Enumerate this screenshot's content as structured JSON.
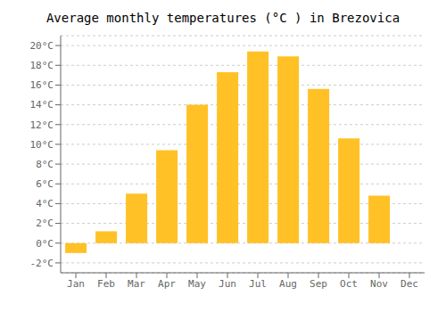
{
  "chart_data": {
    "type": "bar",
    "title": "Average monthly temperatures (°C ) in Brezovica",
    "categories": [
      "Jan",
      "Feb",
      "Mar",
      "Apr",
      "May",
      "Jun",
      "Jul",
      "Aug",
      "Sep",
      "Oct",
      "Nov",
      "Dec"
    ],
    "values": [
      -1.0,
      1.2,
      5.0,
      9.4,
      14.0,
      17.3,
      19.4,
      18.9,
      15.6,
      10.6,
      4.8,
      0.0
    ],
    "color": "#FFC125",
    "ylim": [
      -3,
      21
    ],
    "yticks": [
      {
        "value": -2,
        "label": "-2°C"
      },
      {
        "value": 0,
        "label": "0°C"
      },
      {
        "value": 2,
        "label": "2°C"
      },
      {
        "value": 4,
        "label": "4°C"
      },
      {
        "value": 6,
        "label": "6°C"
      },
      {
        "value": 8,
        "label": "8°C"
      },
      {
        "value": 10,
        "label": "10°C"
      },
      {
        "value": 12,
        "label": "12°C"
      },
      {
        "value": 14,
        "label": "14°C"
      },
      {
        "value": 16,
        "label": "16°C"
      },
      {
        "value": 18,
        "label": "18°C"
      },
      {
        "value": 20,
        "label": "20°C"
      }
    ],
    "grid": true
  }
}
